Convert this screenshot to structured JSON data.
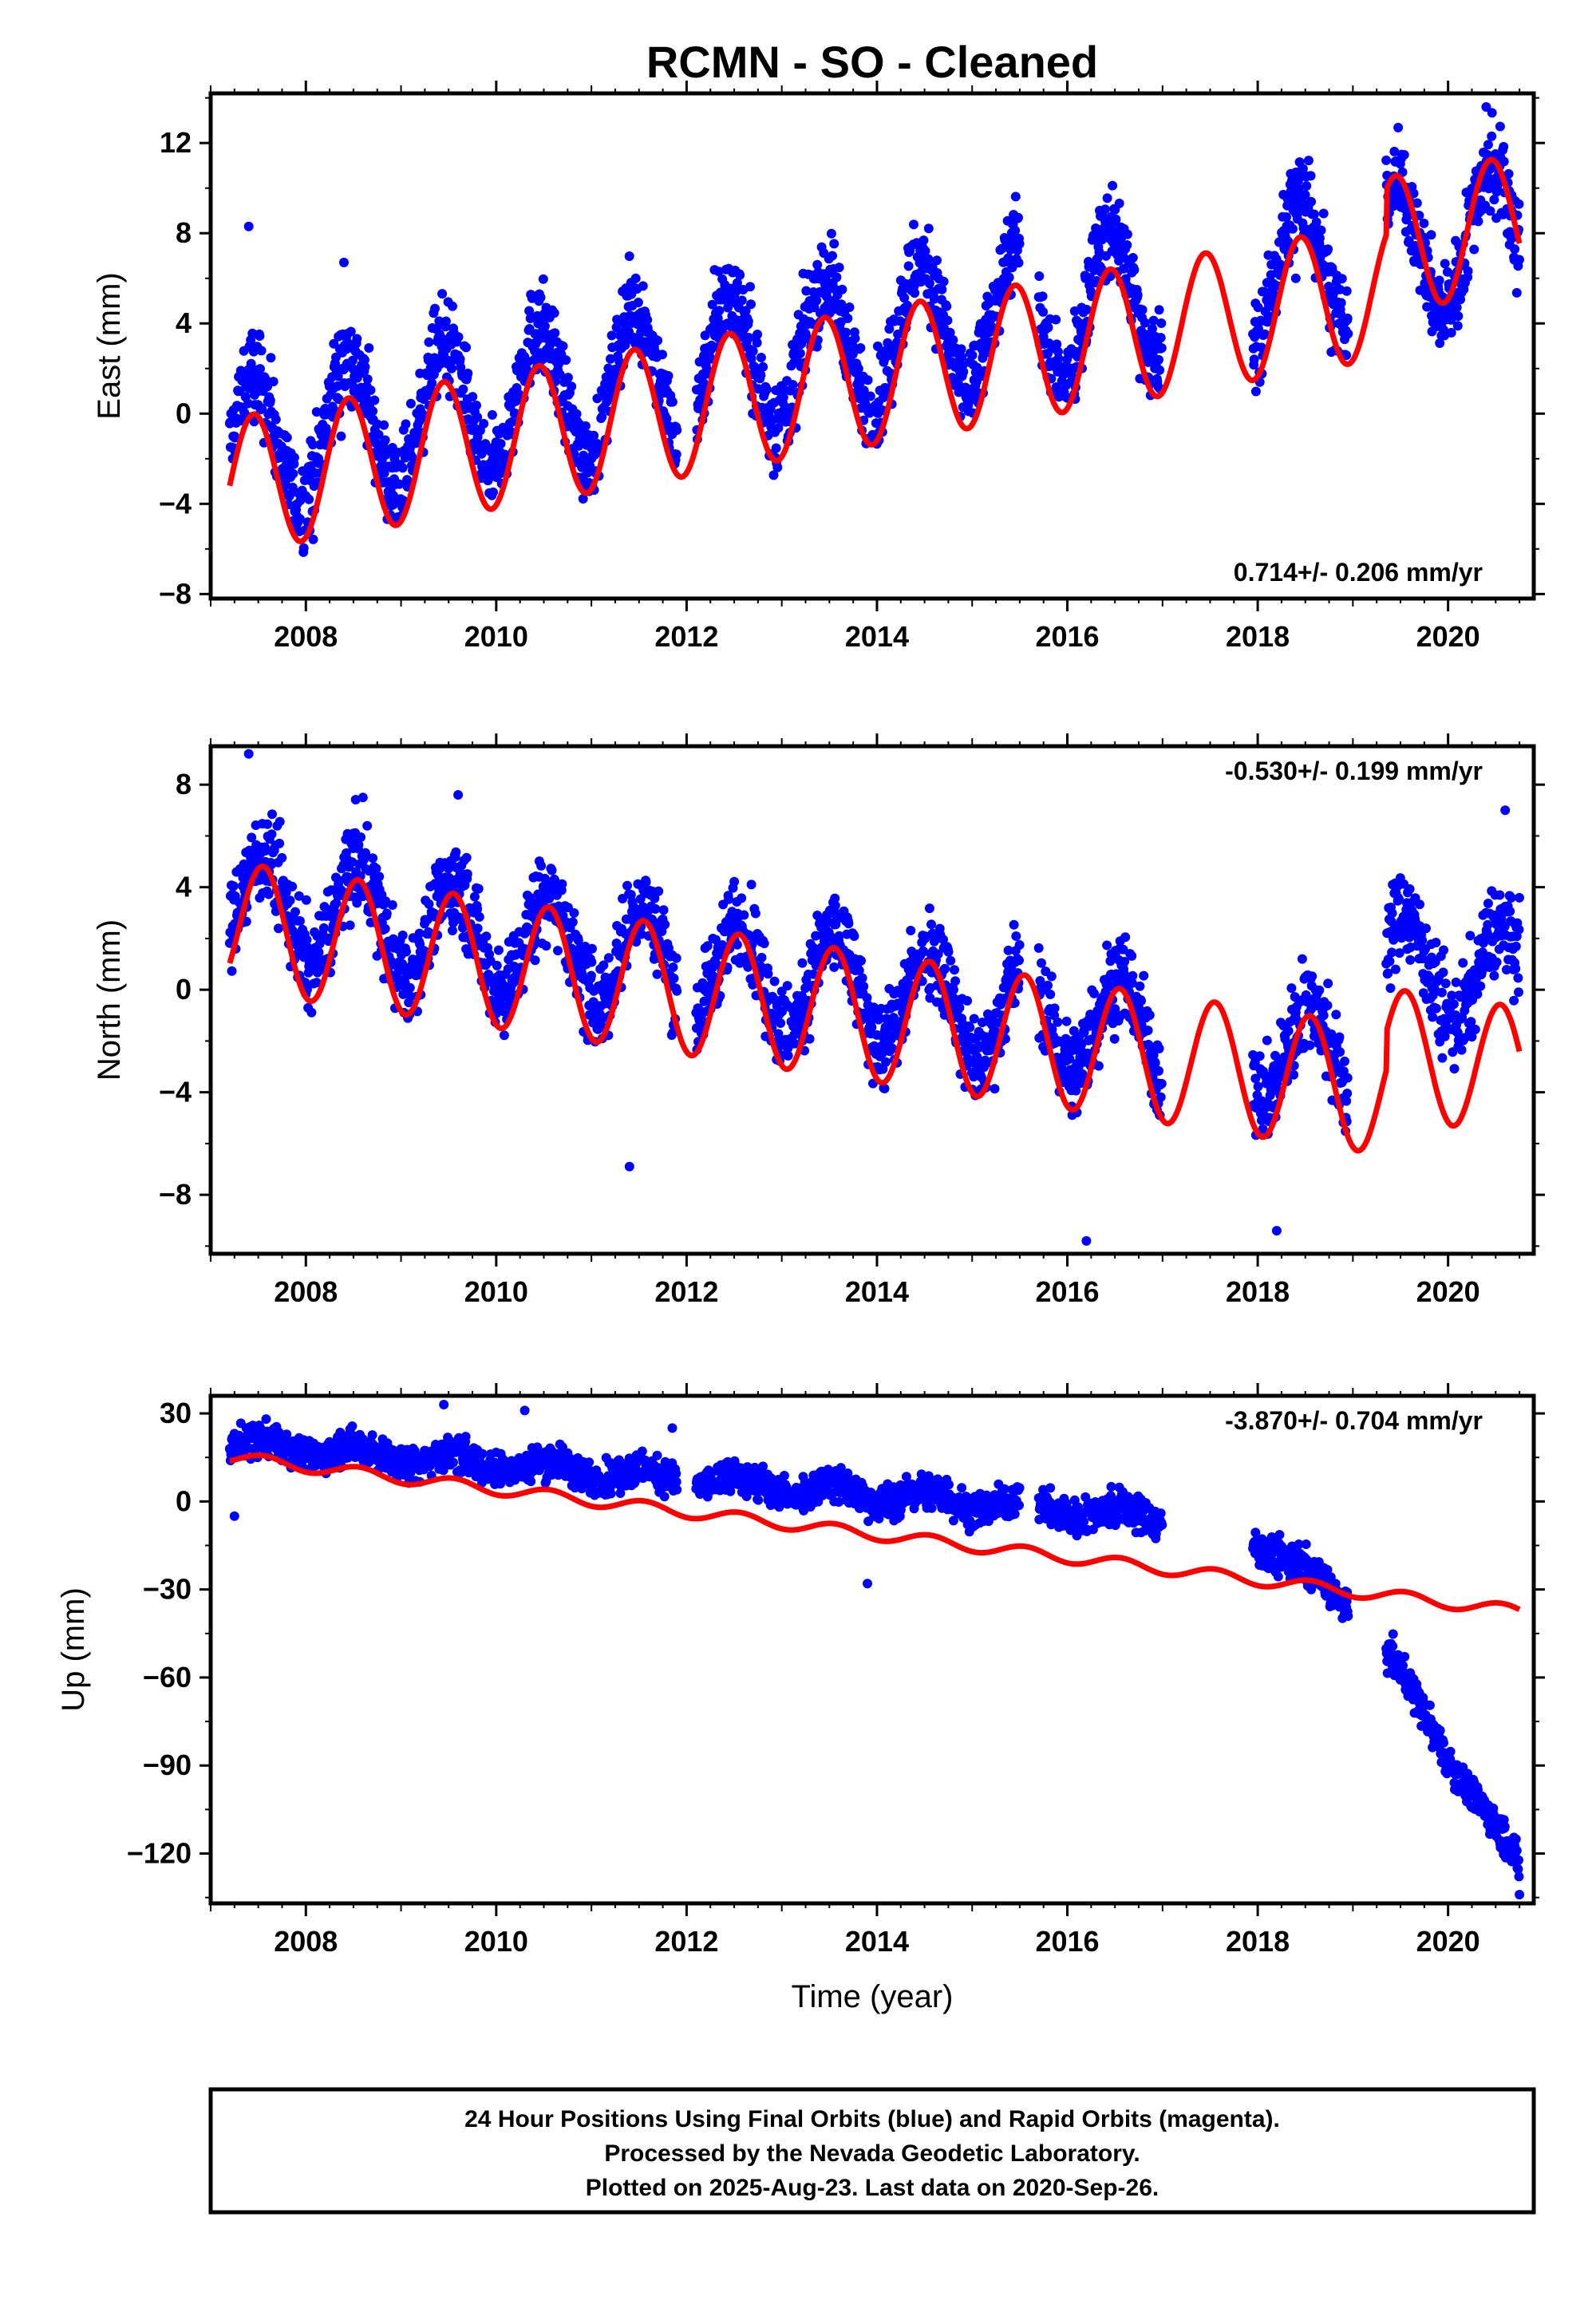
{
  "title": "RCMN  - SO - Cleaned",
  "colors": {
    "data": "#0000ff",
    "model": "#ff0000",
    "frame": "#000000"
  },
  "x_axis": {
    "label": "Time (year)",
    "range": [
      2007.0,
      2020.9
    ],
    "ticks": [
      "2008",
      "2010",
      "2012",
      "2014",
      "2016",
      "2018",
      "2020"
    ]
  },
  "footer": {
    "lines": [
      "24 Hour Positions Using Final Orbits (blue) and Rapid Orbits (magenta).",
      "Processed by the Nevada Geodetic Laboratory.",
      "Plotted on 2025-Aug-23. Last data on 2020-Sep-26."
    ]
  },
  "chart_data": [
    {
      "type": "scatter",
      "ylabel": "East (mm)",
      "ylim": [
        -8.2,
        14.2
      ],
      "yticks": [
        "12",
        "8",
        "4",
        "0",
        "−4",
        "−8"
      ],
      "ytick_values": [
        12,
        8,
        4,
        0,
        -4,
        -8
      ],
      "rate_text": "0.714+/- 0.206 mm/yr",
      "rate_position": "bottom-right",
      "grid": false,
      "series": [
        {
          "kind": "points",
          "segments": [
            [
              2007.2,
              2011.9
            ],
            [
              2012.1,
              2015.5
            ],
            [
              2015.7,
              2017.0
            ],
            [
              2017.95,
              2018.95
            ],
            [
              2019.35,
              2020.75
            ]
          ],
          "trend": {
            "t0": 2007.2,
            "v0": -1.5,
            "slope": 0.714
          },
          "seasonal": {
            "amplitude": 3.0,
            "peak": 0.45
          },
          "scatter": 1.7,
          "x": [
            2007.4,
            2008.4,
            2009.4,
            2010.4,
            2011.4,
            2013.4,
            2016.4,
            2018.4,
            2019.4,
            2020.4
          ],
          "y": [
            8.3,
            6.7,
            4.1,
            5.2,
            5.4,
            5.4,
            8.5,
            6.0,
            9.9,
            13.6
          ]
        },
        {
          "kind": "model",
          "x_range": [
            2007.2,
            2020.75
          ],
          "trend": {
            "t0": 2007.2,
            "v0": -3.2,
            "slope": 0.714
          },
          "seasonal": {
            "amplitude": 3.0,
            "peak": 0.45
          },
          "steps": [
            {
              "x": 2019.35,
              "dy": 2.0
            }
          ]
        }
      ]
    },
    {
      "type": "scatter",
      "ylabel": "North (mm)",
      "ylim": [
        -10.3,
        9.5
      ],
      "yticks": [
        "8",
        "4",
        "0",
        "−4",
        "−8"
      ],
      "ytick_values": [
        8,
        4,
        0,
        -4,
        -8
      ],
      "rate_text": "-0.530+/- 0.199 mm/yr",
      "rate_position": "top-right",
      "grid": false,
      "series": [
        {
          "kind": "points",
          "segments": [
            [
              2007.2,
              2011.9
            ],
            [
              2012.1,
              2015.5
            ],
            [
              2015.7,
              2017.0
            ],
            [
              2017.95,
              2018.95
            ],
            [
              2019.35,
              2020.75
            ]
          ],
          "trend": {
            "t0": 2007.2,
            "v0": 3.5,
            "slope": -0.53
          },
          "seasonal": {
            "amplitude": 2.0,
            "peak": 0.55
          },
          "scatter": 1.5,
          "steps": [
            {
              "x": 2019.35,
              "dy": 4.0
            }
          ],
          "x": [
            2007.4,
            2008.6,
            2009.6,
            2011.4,
            2016.2,
            2018.2,
            2020.6
          ],
          "y": [
            9.2,
            7.5,
            7.6,
            -6.9,
            -9.8,
            -9.4,
            7.0
          ]
        },
        {
          "kind": "model",
          "x_range": [
            2007.2,
            2020.75
          ],
          "trend": {
            "t0": 2007.2,
            "v0": 2.5,
            "slope": -0.53
          },
          "seasonal": {
            "amplitude": 2.5,
            "peak": 0.55
          },
          "steps": [
            {
              "x": 2019.35,
              "dy": 1.5
            }
          ]
        }
      ]
    },
    {
      "type": "scatter",
      "ylabel": "Up (mm)",
      "ylim": [
        -137,
        36
      ],
      "yticks": [
        "30",
        "0",
        "−30",
        "−60",
        "−90",
        "−120"
      ],
      "ytick_values": [
        30,
        0,
        -30,
        -60,
        -90,
        -120
      ],
      "rate_text": "-3.870+/- 0.704 mm/yr",
      "rate_position": "top-right",
      "grid": false,
      "series": [
        {
          "kind": "points",
          "segments": [
            [
              2007.2,
              2011.9
            ],
            [
              2012.1,
              2015.5
            ],
            [
              2015.7,
              2017.0
            ],
            [
              2017.95,
              2018.95
            ],
            [
              2019.35,
              2020.75
            ]
          ],
          "trend": {
            "t0": 2007.2,
            "v0": 20,
            "slope": -2.6
          },
          "seasonal": {
            "amplitude": 2.5,
            "peak": 0.55
          },
          "scatter": 5,
          "ramps": [
            {
              "from": 2017.95,
              "to": 2018.95,
              "y0": -12,
              "y1": -35
            },
            {
              "from": 2019.35,
              "to": 2020.75,
              "y0": -52,
              "y1": -125
            }
          ],
          "x": [
            2009.45,
            2010.3,
            2011.85,
            2013.9,
            2007.25,
            2020.75
          ],
          "y": [
            33,
            31,
            25,
            -28,
            -5,
            -134
          ]
        },
        {
          "kind": "model",
          "x_range": [
            2007.2,
            2020.75
          ],
          "trend": {
            "t0": 2007.2,
            "v0": 15,
            "slope": -3.87
          },
          "seasonal": {
            "amplitude": 2.0,
            "peak": 0.55
          }
        }
      ]
    }
  ]
}
